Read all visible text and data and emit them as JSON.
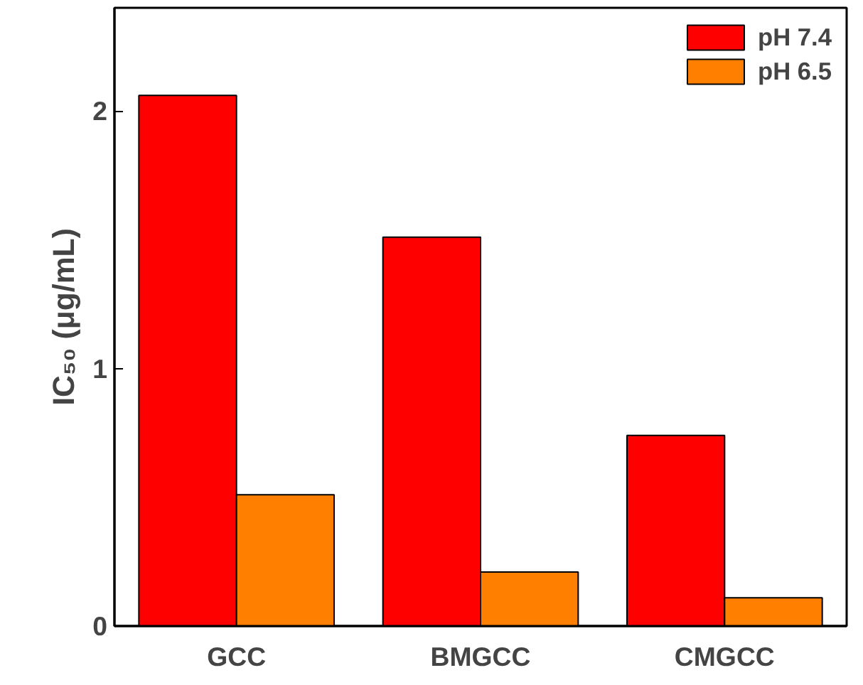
{
  "chart_data": {
    "type": "bar",
    "ylabel": "IC₅₀ (μg/mL)",
    "categories": [
      "GCC",
      "BMGCC",
      "CMGCC"
    ],
    "series": [
      {
        "name": "pH 7.4",
        "color": "#ff0000",
        "values": [
          2.06,
          1.51,
          0.74
        ]
      },
      {
        "name": "pH 6.5",
        "color": "#ff8000",
        "values": [
          0.51,
          0.21,
          0.11
        ]
      }
    ],
    "ylim": [
      0,
      2.4
    ],
    "yticks": [
      0,
      1,
      2
    ],
    "grid": false,
    "legend": "top right"
  }
}
